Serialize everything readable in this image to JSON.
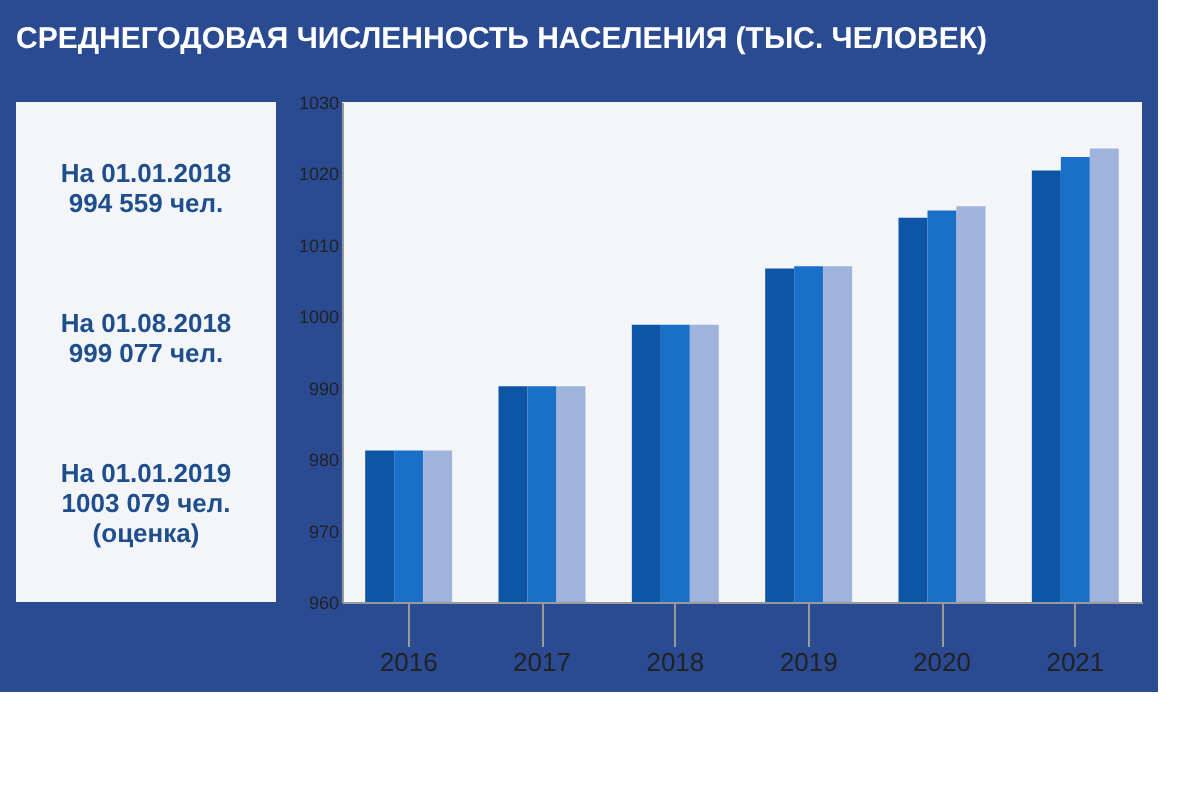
{
  "chart_data": {
    "type": "bar",
    "title": "СРЕДНЕГОДОВАЯ ЧИСЛЕННОСТЬ НАСЕЛЕНИЯ (ТЫС. ЧЕЛОВЕК)",
    "categories": [
      "2016",
      "2017",
      "2018",
      "2019",
      "2020",
      "2021"
    ],
    "series": [
      {
        "color": "#0d56a6",
        "values": [
          981.2,
          990.2,
          998.8,
          1006.7,
          1013.8,
          1020.4
        ]
      },
      {
        "color": "#1a6fc9",
        "values": [
          981.2,
          990.2,
          998.8,
          1007.0,
          1014.8,
          1022.3
        ]
      },
      {
        "color": "#9fb4dc",
        "values": [
          981.2,
          990.2,
          998.8,
          1007.0,
          1015.4,
          1023.5
        ]
      }
    ],
    "ylim": [
      960,
      1030
    ],
    "yticks": [
      960,
      970,
      980,
      990,
      1000,
      1010,
      1020,
      1030
    ],
    "grid": false,
    "legend": false,
    "annotations": [
      "На 01.01.2018\n994 559 чел.",
      "На 01.08.2018\n999 077 чел.",
      "На 01.01.2019\n1003 079 чел.\n(оценка)"
    ]
  }
}
